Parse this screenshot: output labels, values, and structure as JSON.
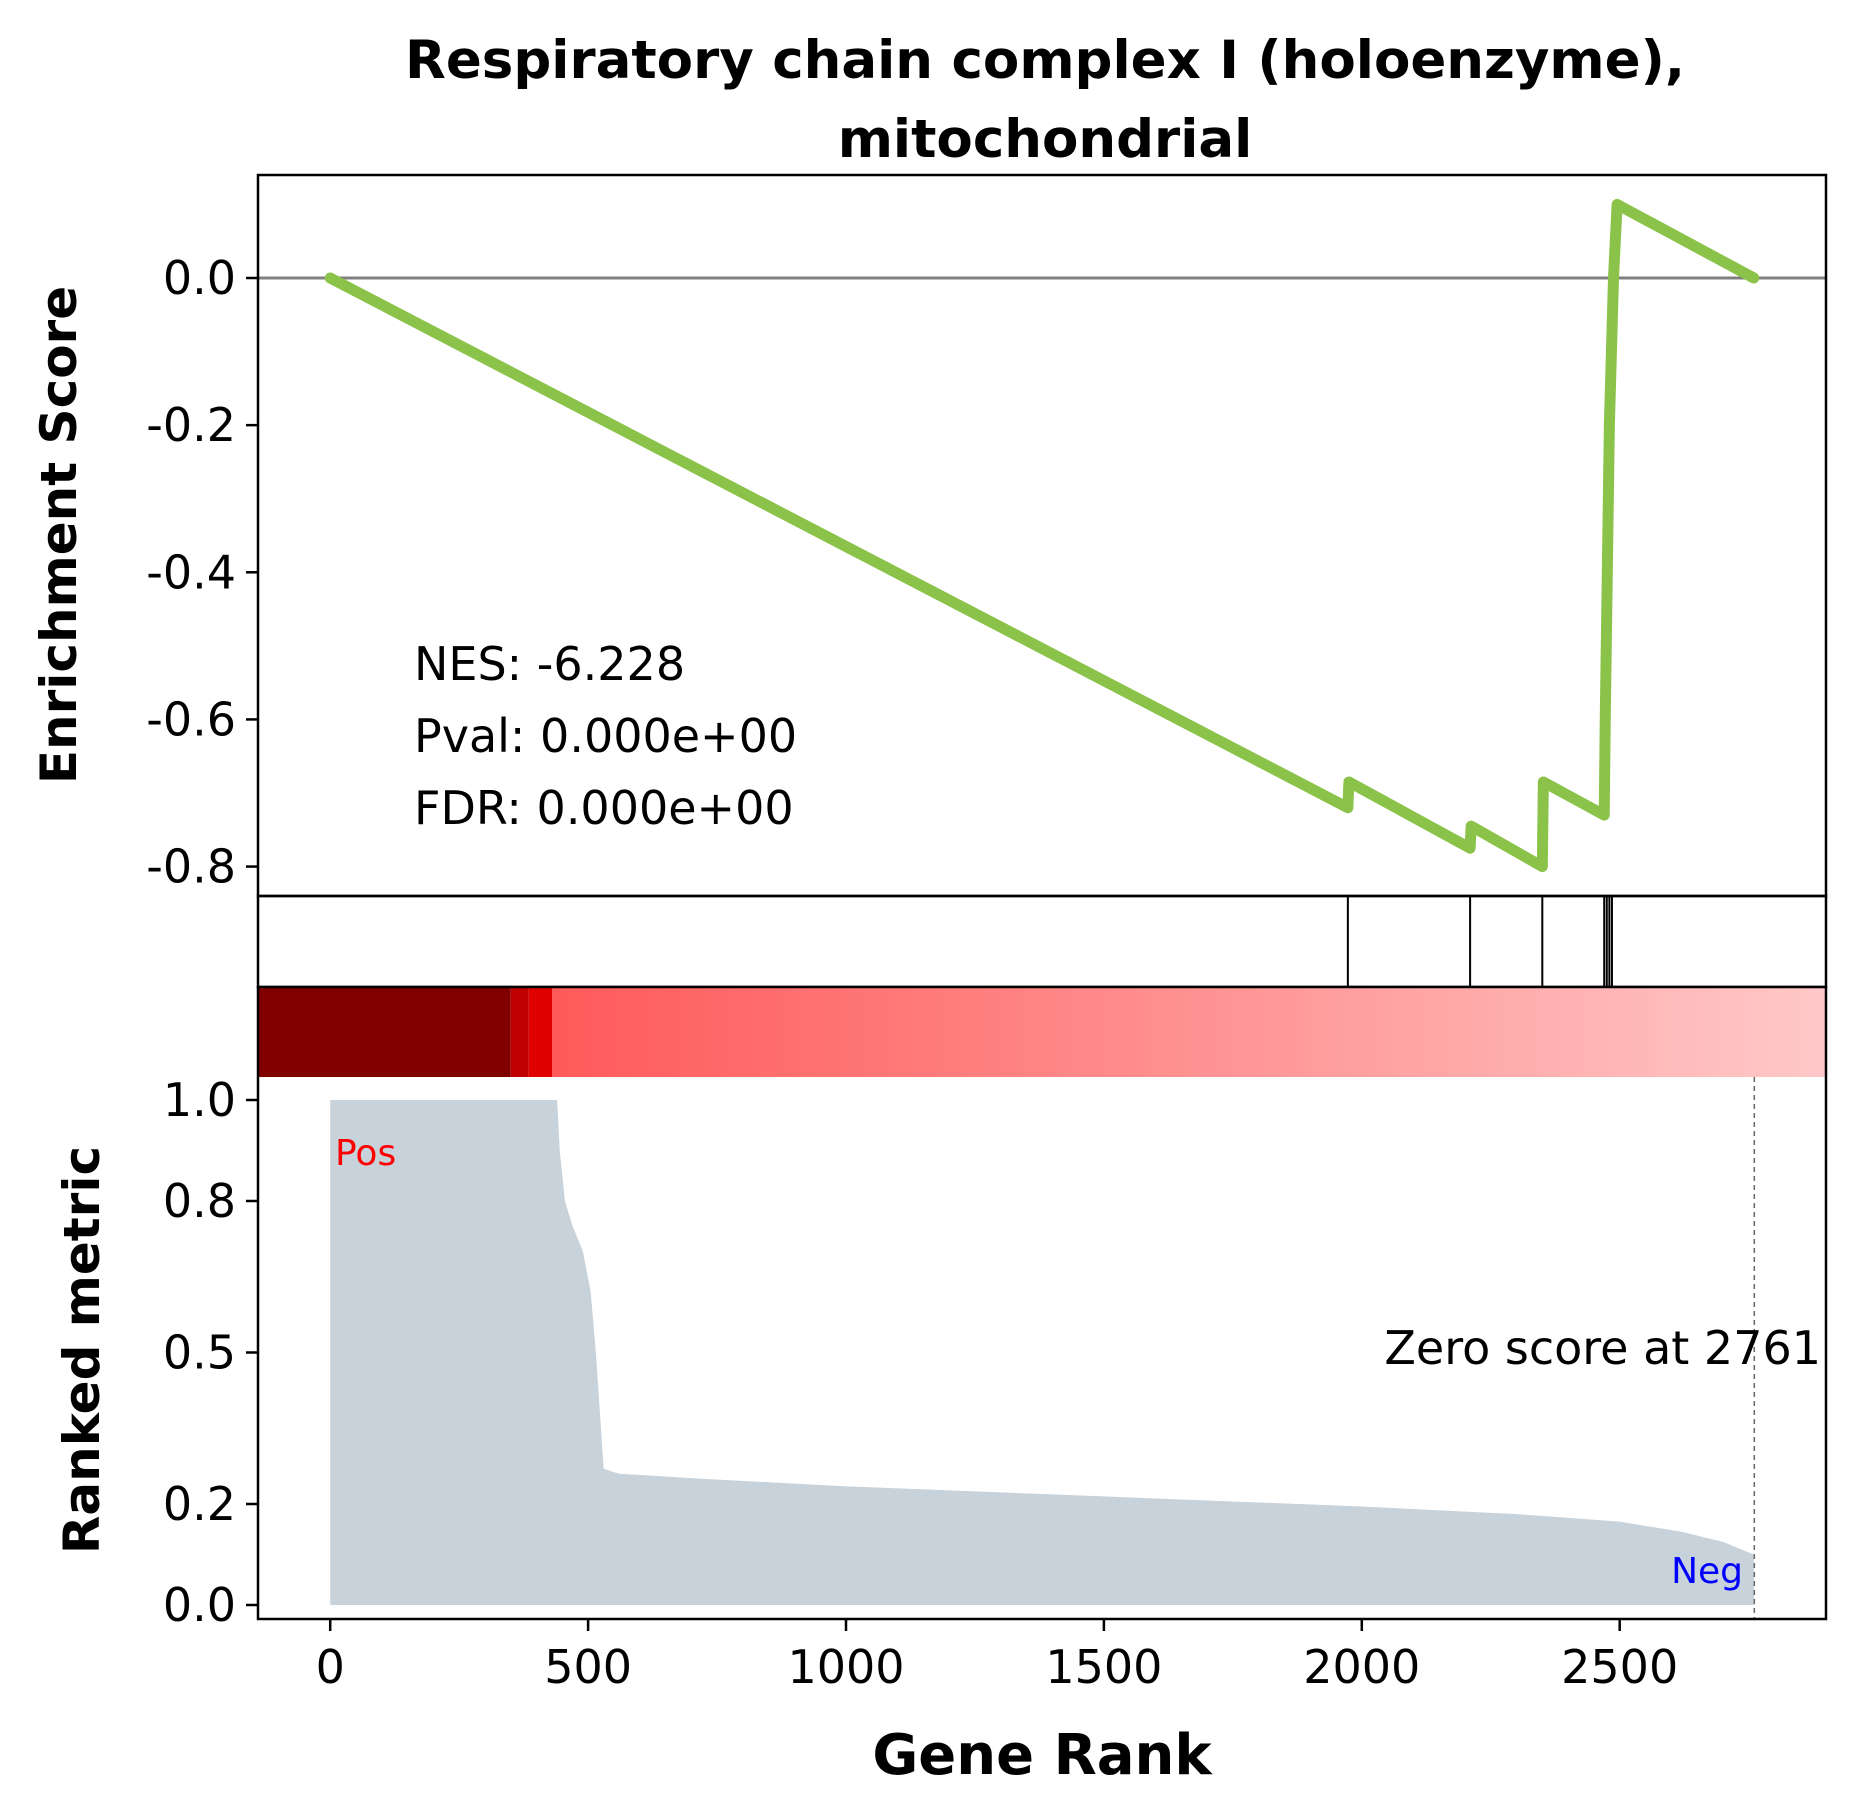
{
  "chart_data": {
    "type": "line",
    "title_line1": "Respiratory chain complex I (holoenzyme),",
    "title_line2": "mitochondrial",
    "xlabel": "Gene Rank",
    "xlim": [
      -140,
      2900
    ],
    "x_ticks": [
      0,
      500,
      1000,
      1500,
      2000,
      2500
    ],
    "x_tick_labels": [
      "0",
      "500",
      "1000",
      "1500",
      "2000",
      "2500"
    ],
    "enrichment": {
      "ylabel": "Enrichment Score",
      "ylim": [
        -0.84,
        0.14
      ],
      "y_ticks": [
        0.0,
        -0.2,
        -0.4,
        -0.6,
        -0.8
      ],
      "y_tick_labels": [
        "0.0",
        "-0.2",
        "-0.4",
        "-0.6",
        "-0.8"
      ],
      "zero_line": 0,
      "line_color": "#8bc34a",
      "points": [
        [
          0,
          0.0
        ],
        [
          1973,
          -0.72
        ],
        [
          1975,
          -0.685
        ],
        [
          2210,
          -0.775
        ],
        [
          2212,
          -0.745
        ],
        [
          2350,
          -0.8
        ],
        [
          2352,
          -0.685
        ],
        [
          2470,
          -0.73
        ],
        [
          2472,
          -0.6
        ],
        [
          2476,
          -0.4
        ],
        [
          2480,
          -0.2
        ],
        [
          2488,
          0.0
        ],
        [
          2495,
          0.1
        ],
        [
          2760,
          0.0
        ]
      ],
      "stats": [
        "NES: -6.228",
        "Pval: 0.000e+00",
        "FDR: 0.000e+00"
      ]
    },
    "hits": [
      1973,
      2210,
      2350,
      2470,
      2475,
      2480,
      2485
    ],
    "heatmap_strip": {
      "cmap": "Reds",
      "segments": [
        {
          "x_end": 350,
          "color": "#800000"
        },
        {
          "x_end": 385,
          "color": "#c00000"
        },
        {
          "x_end": 430,
          "color": "#e00000"
        },
        {
          "x_end": 2900,
          "gradient_from": "#ff5a5a",
          "gradient_to": "#ffc8c8"
        }
      ]
    },
    "ranked_metric": {
      "ylabel": "Ranked metric",
      "ylim": [
        -0.04,
        1.04
      ],
      "y_ticks": [
        0.0,
        0.2,
        0.5,
        0.8,
        1.0
      ],
      "y_tick_labels": [
        "0.0",
        "0.2",
        "0.5",
        "0.8",
        "1.0"
      ],
      "fill_color": "#c8d2da",
      "points": [
        [
          0,
          1.0
        ],
        [
          440,
          1.0
        ],
        [
          445,
          0.9
        ],
        [
          455,
          0.8
        ],
        [
          470,
          0.75
        ],
        [
          490,
          0.7
        ],
        [
          505,
          0.62
        ],
        [
          515,
          0.5
        ],
        [
          525,
          0.35
        ],
        [
          530,
          0.27
        ],
        [
          560,
          0.26
        ],
        [
          720,
          0.25
        ],
        [
          1000,
          0.235
        ],
        [
          1500,
          0.215
        ],
        [
          2000,
          0.195
        ],
        [
          2300,
          0.18
        ],
        [
          2500,
          0.165
        ],
        [
          2620,
          0.145
        ],
        [
          2700,
          0.125
        ],
        [
          2760,
          0.1
        ],
        [
          2761,
          0.0
        ]
      ],
      "pos_label": "Pos",
      "neg_label": "Neg",
      "pos_color": "#ff0000",
      "neg_color": "#0000ff",
      "zero_score_text": "Zero score at 2761",
      "zero_score_at": 2761
    }
  }
}
